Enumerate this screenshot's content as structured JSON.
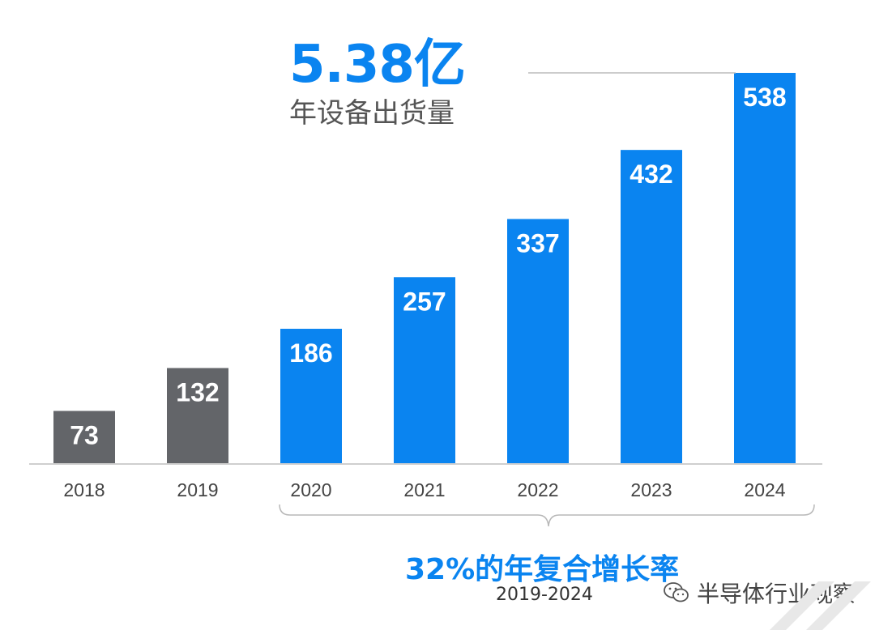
{
  "headline": {
    "value": "5.38亿",
    "label": "年设备出货量"
  },
  "cagr": {
    "label": "32%的年复合增长率",
    "range": "2019-2024"
  },
  "watermark": {
    "text": "半导体行业观察",
    "icon": "wechat-icon"
  },
  "colors": {
    "historical": "#636569",
    "forecast": "#0a84f0",
    "axis": "#cfcfcf",
    "bar_label": "#ffffff"
  },
  "chart_data": {
    "type": "bar",
    "categories": [
      "2018",
      "2019",
      "2020",
      "2021",
      "2022",
      "2023",
      "2024"
    ],
    "values": [
      73,
      132,
      186,
      257,
      337,
      432,
      538
    ],
    "series_color_keys": [
      "historical",
      "historical",
      "forecast",
      "forecast",
      "forecast",
      "forecast",
      "forecast"
    ],
    "title": "",
    "xlabel": "",
    "ylabel": "",
    "ylim": [
      0,
      538
    ],
    "grid": false,
    "data_labels": true
  }
}
